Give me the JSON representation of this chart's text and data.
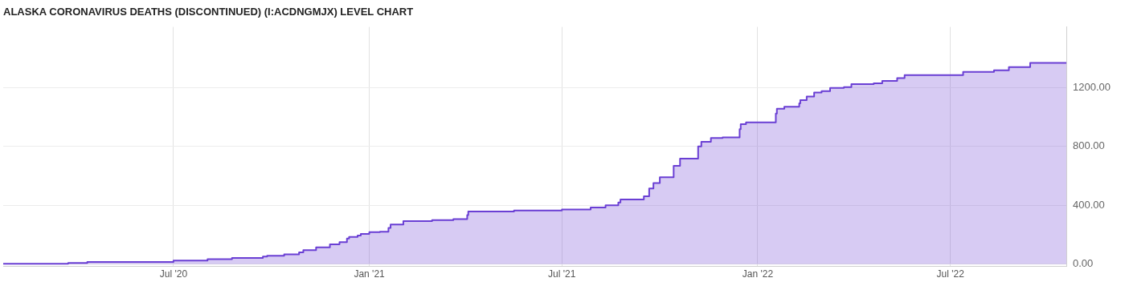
{
  "chart_data": {
    "type": "area",
    "title": "ALASKA CORONAVIRUS DEATHS (DISCONTINUED) (I:ACDNGMJX) LEVEL CHART",
    "x": [
      "2020-01-23",
      "2020-03-24",
      "2020-04-11",
      "2020-07-01",
      "2020-08-02",
      "2020-08-25",
      "2020-09-23",
      "2020-09-27",
      "2020-10-13",
      "2020-10-27",
      "2020-10-31",
      "2020-11-12",
      "2020-11-25",
      "2020-12-04",
      "2020-12-11",
      "2020-12-13",
      "2020-12-21",
      "2020-12-24",
      "2021-01-01",
      "2021-01-11",
      "2021-01-19",
      "2021-01-21",
      "2021-02-02",
      "2021-03-01",
      "2021-03-21",
      "2021-04-03",
      "2021-04-04",
      "2021-05-17",
      "2021-07-01",
      "2021-07-28",
      "2021-08-11",
      "2021-08-23",
      "2021-08-25",
      "2021-09-16",
      "2021-09-21",
      "2021-09-25",
      "2021-10-01",
      "2021-10-14",
      "2021-10-20",
      "2021-11-06",
      "2021-11-09",
      "2021-11-18",
      "2021-11-29",
      "2021-12-15",
      "2021-12-16",
      "2021-12-21",
      "2022-01-18",
      "2022-01-19",
      "2022-01-26",
      "2022-02-09",
      "2022-02-10",
      "2022-02-16",
      "2022-02-23",
      "2022-03-02",
      "2022-03-10",
      "2022-03-23",
      "2022-03-30",
      "2022-04-20",
      "2022-04-28",
      "2022-05-12",
      "2022-05-19",
      "2022-07-13",
      "2022-08-11",
      "2022-08-25",
      "2022-09-14",
      "2022-10-05",
      "2022-10-18"
    ],
    "series": [
      {
        "color": "#6a3fd4",
        "values": [
          0,
          3,
          9,
          15,
          25,
          35,
          43,
          52,
          57,
          67,
          80,
          95,
          115,
          135,
          150,
          175,
          185,
          195,
          205,
          218,
          221,
          247,
          269,
          293,
          300,
          306,
          334,
          358,
          365,
          372,
          385,
          400,
          419,
          440,
          461,
          514,
          551,
          590,
          667,
          717,
          800,
          830,
          856,
          861,
          916,
          950,
          962,
          1022,
          1055,
          1069,
          1091,
          1113,
          1138,
          1165,
          1174,
          1196,
          1202,
          1222,
          1228,
          1244,
          1263,
          1283,
          1305,
          1316,
          1338,
          1366,
          1366
        ]
      }
    ],
    "xlim": [
      "2020-01-23",
      "2022-10-18"
    ],
    "xticks": [
      {
        "value": "2020-07-01",
        "label": "Jul '20"
      },
      {
        "value": "2021-01-01",
        "label": "Jan '21"
      },
      {
        "value": "2021-07-01",
        "label": "Jul '21"
      },
      {
        "value": "2022-01-01",
        "label": "Jan '22"
      },
      {
        "value": "2022-07-01",
        "label": "Jul '22"
      }
    ],
    "ylim": [
      -15,
      1610
    ],
    "yticks": [
      {
        "value": 0,
        "label": "0.00"
      },
      {
        "value": 400,
        "label": "400.00"
      },
      {
        "value": 800,
        "label": "800.00"
      },
      {
        "value": 1200,
        "label": "1200.00"
      }
    ],
    "grid": true,
    "legend": false
  }
}
